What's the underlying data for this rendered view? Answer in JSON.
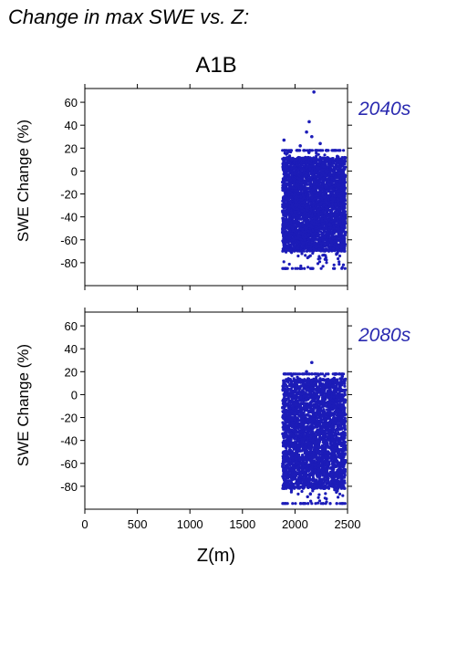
{
  "figure_title": "Change in max SWE vs. Z:",
  "scenario_label": "A1B",
  "colors": {
    "points": "#1c1cb8",
    "period_label": "#2a2ab0",
    "axes": "#000000"
  },
  "chart_data": [
    {
      "type": "scatter",
      "period_label": "2040s",
      "ylabel": "SWE Change (%)",
      "xlabel": "",
      "xlim": [
        0,
        2500
      ],
      "ylim": [
        -100,
        72
      ],
      "xticks": [
        0,
        500,
        1000,
        1500,
        2000,
        2500
      ],
      "yticks": [
        -80,
        -60,
        -40,
        -20,
        0,
        20,
        40,
        60
      ],
      "show_x_tick_labels": false,
      "grid": false,
      "cloud": {
        "x_range": [
          1880,
          2480
        ],
        "core_y_range": [
          -70,
          12
        ],
        "sparse_y_range": [
          -85,
          18
        ],
        "n_points": 4000
      },
      "outliers": [
        {
          "x": 2180,
          "y": 69
        },
        {
          "x": 2135,
          "y": 43
        },
        {
          "x": 2110,
          "y": 34
        },
        {
          "x": 2160,
          "y": 30
        },
        {
          "x": 1895,
          "y": 27
        },
        {
          "x": 2240,
          "y": 24
        },
        {
          "x": 2050,
          "y": 22
        },
        {
          "x": 2300,
          "y": 18
        }
      ]
    },
    {
      "type": "scatter",
      "period_label": "2080s",
      "ylabel": "SWE Change (%)",
      "xlabel": "Z(m)",
      "xlim": [
        0,
        2500
      ],
      "ylim": [
        -100,
        72
      ],
      "xticks": [
        0,
        500,
        1000,
        1500,
        2000,
        2500
      ],
      "yticks": [
        -80,
        -60,
        -40,
        -20,
        0,
        20,
        40,
        60
      ],
      "show_x_tick_labels": true,
      "grid": false,
      "cloud": {
        "x_range": [
          1880,
          2480
        ],
        "core_y_range": [
          -82,
          14
        ],
        "sparse_y_range": [
          -95,
          18
        ],
        "n_points": 4000
      },
      "outliers": [
        {
          "x": 2160,
          "y": 28
        },
        {
          "x": 2110,
          "y": 20
        },
        {
          "x": 2450,
          "y": 16
        }
      ]
    }
  ]
}
